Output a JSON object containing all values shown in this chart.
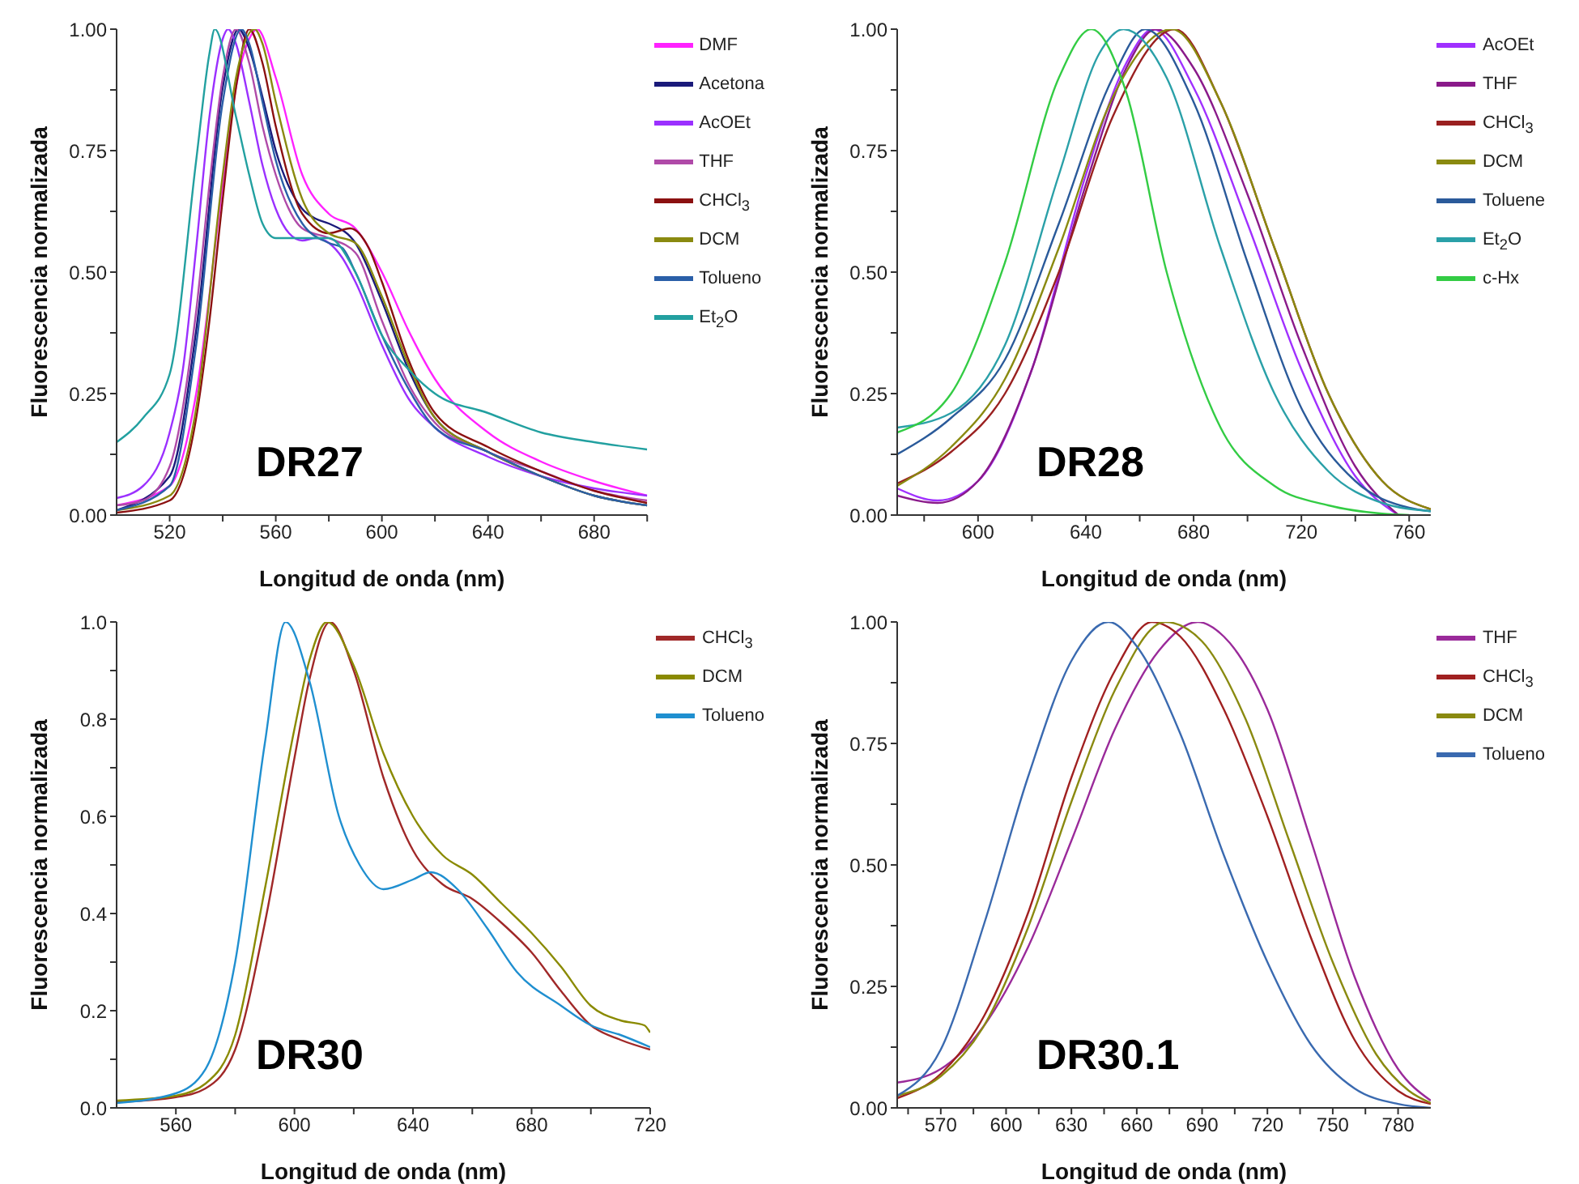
{
  "chart_data": [
    {
      "type": "line",
      "xlabel": "Longitud de onda (nm)",
      "ylabel": "Fluorescencia normalizada",
      "annotations": [
        "DR27"
      ],
      "legend": "top right",
      "xlim": [
        500,
        700
      ],
      "xticks": [
        520,
        560,
        600,
        640,
        680,
        {
          "value": 540,
          "label": null
        },
        {
          "value": 580,
          "label": null
        },
        {
          "value": 620,
          "label": null
        },
        {
          "value": 660,
          "label": null
        },
        {
          "value": 700,
          "label": null
        }
      ],
      "ylim": [
        0,
        1
      ],
      "yticks": [
        {
          "value": 0,
          "label": "0.00"
        },
        {
          "value": 0.25,
          "label": "0.25"
        },
        {
          "value": 0.5,
          "label": "0.50"
        },
        {
          "value": 0.75,
          "label": "0.75"
        },
        {
          "value": 1,
          "label": "1.00"
        },
        {
          "value": 0.125,
          "label": null
        },
        {
          "value": 0.375,
          "label": null
        },
        {
          "value": 0.625,
          "label": null
        },
        {
          "value": 0.875,
          "label": null
        }
      ],
      "series": [
        {
          "name": "DMF",
          "color": "#ff22ff",
          "x": [
            500,
            520,
            530,
            540,
            545,
            550,
            553,
            560,
            570,
            580,
            590,
            600,
            610,
            620,
            640,
            660,
            680,
            700
          ],
          "values": [
            0.02,
            0.06,
            0.25,
            0.68,
            0.88,
            0.98,
            1.0,
            0.9,
            0.7,
            0.62,
            0.59,
            0.5,
            0.38,
            0.28,
            0.17,
            0.11,
            0.07,
            0.04
          ]
        },
        {
          "name": "Acetona",
          "color": "#1a1a7a",
          "x": [
            500,
            520,
            530,
            540,
            546,
            550,
            555,
            560,
            570,
            575,
            580,
            590,
            600,
            610,
            620,
            640,
            660,
            680,
            700
          ],
          "values": [
            0.01,
            0.08,
            0.38,
            0.88,
            1.0,
            0.96,
            0.86,
            0.75,
            0.63,
            0.61,
            0.6,
            0.56,
            0.44,
            0.3,
            0.2,
            0.13,
            0.08,
            0.04,
            0.02
          ]
        },
        {
          "name": "AcOEt",
          "color": "#9b30ff",
          "x": [
            500,
            510,
            520,
            525,
            530,
            535,
            540,
            542,
            545,
            550,
            555,
            560,
            565,
            570,
            575,
            580,
            585,
            590,
            600,
            610,
            620,
            640,
            660,
            680,
            700
          ],
          "values": [
            0.035,
            0.06,
            0.17,
            0.3,
            0.55,
            0.82,
            0.98,
            1.0,
            0.97,
            0.85,
            0.72,
            0.63,
            0.58,
            0.565,
            0.57,
            0.56,
            0.53,
            0.48,
            0.35,
            0.24,
            0.18,
            0.12,
            0.08,
            0.055,
            0.04
          ]
        },
        {
          "name": "THF",
          "color": "#b04aa8",
          "x": [
            500,
            510,
            520,
            530,
            535,
            540,
            545,
            550,
            555,
            560,
            570,
            580,
            590,
            600,
            610,
            620,
            640,
            660,
            680,
            700
          ],
          "values": [
            0.02,
            0.03,
            0.1,
            0.42,
            0.68,
            0.9,
            1.0,
            0.93,
            0.8,
            0.7,
            0.59,
            0.57,
            0.54,
            0.4,
            0.27,
            0.19,
            0.13,
            0.09,
            0.05,
            0.03
          ]
        },
        {
          "name": "CHCl$_{3}$",
          "color": "#8b1010",
          "x": [
            500,
            520,
            530,
            535,
            540,
            545,
            550,
            555,
            560,
            570,
            580,
            588,
            595,
            600,
            610,
            620,
            640,
            660,
            680,
            700
          ],
          "values": [
            0.005,
            0.03,
            0.2,
            0.4,
            0.65,
            0.88,
            1.0,
            0.93,
            0.8,
            0.62,
            0.58,
            0.59,
            0.55,
            0.48,
            0.32,
            0.21,
            0.14,
            0.09,
            0.05,
            0.025
          ]
        },
        {
          "name": "DCM",
          "color": "#8a8a10",
          "x": [
            500,
            520,
            530,
            540,
            545,
            552,
            555,
            560,
            570,
            580,
            590,
            600,
            610,
            620,
            640,
            660,
            680,
            700
          ],
          "values": [
            0.01,
            0.04,
            0.22,
            0.7,
            0.9,
            1.0,
            0.97,
            0.85,
            0.65,
            0.58,
            0.56,
            0.45,
            0.31,
            0.2,
            0.13,
            0.08,
            0.04,
            0.02
          ]
        },
        {
          "name": "Tolueno",
          "color": "#2a5fa8",
          "x": [
            500,
            520,
            530,
            540,
            547,
            550,
            555,
            560,
            570,
            580,
            585,
            590,
            600,
            610,
            620,
            640,
            660,
            680,
            700
          ],
          "values": [
            0.01,
            0.06,
            0.35,
            0.85,
            1.0,
            0.97,
            0.85,
            0.73,
            0.6,
            0.56,
            0.55,
            0.5,
            0.37,
            0.26,
            0.18,
            0.13,
            0.08,
            0.04,
            0.02
          ]
        },
        {
          "name": "Et$_{2}$O",
          "color": "#22a0a0",
          "x": [
            500,
            510,
            520,
            530,
            535,
            537,
            545,
            550,
            555,
            560,
            570,
            580,
            590,
            600,
            610,
            620,
            640,
            660,
            680,
            700
          ],
          "values": [
            0.15,
            0.2,
            0.29,
            0.73,
            0.95,
            1.0,
            0.82,
            0.7,
            0.6,
            0.57,
            0.57,
            0.57,
            0.5,
            0.37,
            0.3,
            0.25,
            0.21,
            0.17,
            0.15,
            0.135
          ]
        }
      ]
    },
    {
      "type": "line",
      "xlabel": "Longitud de onda (nm)",
      "ylabel": "Fluorescencia normalizada",
      "annotations": [
        "DR28"
      ],
      "legend": "top right",
      "xlim": [
        570,
        768
      ],
      "xticks": [
        600,
        640,
        680,
        720,
        760,
        {
          "value": 580,
          "label": null
        },
        {
          "value": 620,
          "label": null
        },
        {
          "value": 660,
          "label": null
        },
        {
          "value": 700,
          "label": null
        },
        {
          "value": 740,
          "label": null
        }
      ],
      "ylim": [
        0,
        1
      ],
      "yticks": [
        {
          "value": 0,
          "label": "0.00"
        },
        {
          "value": 0.25,
          "label": "0.25"
        },
        {
          "value": 0.5,
          "label": "0.50"
        },
        {
          "value": 0.75,
          "label": "0.75"
        },
        {
          "value": 1,
          "label": "1.00"
        },
        {
          "value": 0.125,
          "label": null
        },
        {
          "value": 0.375,
          "label": null
        },
        {
          "value": 0.625,
          "label": null
        },
        {
          "value": 0.875,
          "label": null
        }
      ],
      "series": [
        {
          "name": "AcOEt",
          "color": "#a030ff",
          "x": [
            570,
            585,
            600,
            620,
            640,
            655,
            665,
            680,
            700,
            720,
            740,
            756
          ],
          "values": [
            0.055,
            0.03,
            0.07,
            0.3,
            0.7,
            0.93,
            1.0,
            0.88,
            0.6,
            0.3,
            0.08,
            0.0
          ]
        },
        {
          "name": "THF",
          "color": "#8a1a8a",
          "x": [
            570,
            585,
            600,
            620,
            640,
            655,
            666,
            680,
            700,
            720,
            740,
            756
          ],
          "values": [
            0.04,
            0.025,
            0.07,
            0.3,
            0.68,
            0.92,
            1.0,
            0.92,
            0.66,
            0.35,
            0.1,
            0.0
          ]
        },
        {
          "name": "CHCl$_{3}$",
          "color": "#9a2020",
          "x": [
            570,
            590,
            610,
            630,
            650,
            673,
            690,
            710,
            730,
            750,
            768
          ],
          "values": [
            0.065,
            0.13,
            0.25,
            0.5,
            0.82,
            1.0,
            0.85,
            0.55,
            0.25,
            0.07,
            0.012
          ]
        },
        {
          "name": "DCM",
          "color": "#8a8a10",
          "x": [
            570,
            590,
            610,
            630,
            650,
            672,
            690,
            710,
            730,
            750,
            768
          ],
          "values": [
            0.06,
            0.14,
            0.28,
            0.55,
            0.86,
            1.0,
            0.85,
            0.55,
            0.25,
            0.07,
            0.012
          ]
        },
        {
          "name": "Toluene",
          "color": "#2a5a9a",
          "x": [
            570,
            590,
            610,
            630,
            650,
            662,
            680,
            700,
            720,
            740,
            760,
            768
          ],
          "values": [
            0.125,
            0.2,
            0.32,
            0.6,
            0.9,
            1.0,
            0.85,
            0.52,
            0.22,
            0.07,
            0.015,
            0.008
          ]
        },
        {
          "name": "Et$_{2}$O",
          "color": "#2aa0a8",
          "x": [
            570,
            590,
            610,
            630,
            645,
            654,
            670,
            690,
            710,
            730,
            750,
            768
          ],
          "values": [
            0.18,
            0.21,
            0.35,
            0.7,
            0.95,
            1.0,
            0.9,
            0.55,
            0.25,
            0.09,
            0.025,
            0.008
          ]
        },
        {
          "name": "c-Hx",
          "color": "#33cc44",
          "x": [
            570,
            590,
            610,
            630,
            642,
            655,
            670,
            690,
            710,
            730,
            750,
            760
          ],
          "values": [
            0.17,
            0.25,
            0.52,
            0.9,
            1.0,
            0.87,
            0.5,
            0.18,
            0.06,
            0.02,
            0.003,
            0.0
          ]
        }
      ]
    },
    {
      "type": "line",
      "xlabel": "Longitud de onda (nm)",
      "ylabel": "Fluorescencia normalizada",
      "annotations": [
        "DR30"
      ],
      "legend": "top right",
      "xlim": [
        540,
        720
      ],
      "xticks": [
        560,
        600,
        640,
        680,
        720,
        {
          "value": 580,
          "label": null
        },
        {
          "value": 620,
          "label": null
        },
        {
          "value": 660,
          "label": null
        },
        {
          "value": 700,
          "label": null
        }
      ],
      "ylim": [
        0,
        1
      ],
      "yticks": [
        {
          "value": 0,
          "label": "0.0"
        },
        0.2,
        0.4,
        0.6,
        0.8,
        {
          "value": 1,
          "label": "1.0"
        },
        {
          "value": 0.1,
          "label": null
        },
        {
          "value": 0.3,
          "label": null
        },
        {
          "value": 0.5,
          "label": null
        },
        {
          "value": 0.7,
          "label": null
        },
        {
          "value": 0.9,
          "label": null
        }
      ],
      "series": [
        {
          "name": "CHCl$_{3}$",
          "color": "#a02828",
          "x": [
            540,
            560,
            570,
            580,
            590,
            600,
            605,
            612,
            620,
            630,
            640,
            650,
            660,
            670,
            680,
            690,
            700,
            710,
            720
          ],
          "values": [
            0.012,
            0.022,
            0.04,
            0.12,
            0.38,
            0.72,
            0.88,
            1.0,
            0.9,
            0.68,
            0.53,
            0.46,
            0.43,
            0.38,
            0.32,
            0.24,
            0.17,
            0.14,
            0.12
          ]
        },
        {
          "name": "DCM",
          "color": "#8a8a00",
          "x": [
            540,
            560,
            570,
            580,
            590,
            600,
            605,
            611,
            620,
            630,
            640,
            650,
            660,
            670,
            680,
            690,
            700,
            710,
            718,
            720
          ],
          "values": [
            0.015,
            0.025,
            0.05,
            0.15,
            0.45,
            0.78,
            0.92,
            1.0,
            0.91,
            0.73,
            0.6,
            0.52,
            0.48,
            0.42,
            0.36,
            0.29,
            0.21,
            0.18,
            0.17,
            0.155
          ]
        },
        {
          "name": "Tolueno",
          "color": "#1f8fd0",
          "x": [
            540,
            560,
            570,
            580,
            590,
            597,
            605,
            615,
            622,
            630,
            640,
            646,
            655,
            665,
            675,
            690,
            700,
            710,
            720
          ],
          "values": [
            0.01,
            0.03,
            0.08,
            0.3,
            0.75,
            1.0,
            0.88,
            0.6,
            0.5,
            0.45,
            0.47,
            0.485,
            0.45,
            0.37,
            0.28,
            0.21,
            0.17,
            0.15,
            0.125
          ]
        }
      ]
    },
    {
      "type": "line",
      "xlabel": "Longitud de onda (nm)",
      "ylabel": "Fluorescencia normalizada",
      "annotations": [
        "DR30.1"
      ],
      "legend": "top right",
      "xlim": [
        550,
        795
      ],
      "xticks": [
        570,
        600,
        630,
        660,
        690,
        720,
        750,
        780,
        {
          "value": 555,
          "label": null
        },
        {
          "value": 585,
          "label": null
        },
        {
          "value": 615,
          "label": null
        },
        {
          "value": 645,
          "label": null
        },
        {
          "value": 675,
          "label": null
        },
        {
          "value": 705,
          "label": null
        },
        {
          "value": 735,
          "label": null
        },
        {
          "value": 765,
          "label": null
        }
      ],
      "ylim": [
        0,
        1
      ],
      "yticks": [
        {
          "value": 0,
          "label": "0.00"
        },
        {
          "value": 0.25,
          "label": "0.25"
        },
        {
          "value": 0.5,
          "label": "0.50"
        },
        {
          "value": 0.75,
          "label": "0.75"
        },
        {
          "value": 1,
          "label": "1.00"
        },
        {
          "value": 0.125,
          "label": null
        },
        {
          "value": 0.375,
          "label": null
        },
        {
          "value": 0.625,
          "label": null
        },
        {
          "value": 0.875,
          "label": null
        }
      ],
      "series": [
        {
          "name": "THF",
          "color": "#9a2a9a",
          "x": [
            550,
            570,
            590,
            610,
            630,
            650,
            670,
            688,
            700,
            720,
            740,
            760,
            780,
            795
          ],
          "values": [
            0.052,
            0.08,
            0.17,
            0.33,
            0.55,
            0.78,
            0.94,
            1.0,
            0.97,
            0.82,
            0.55,
            0.27,
            0.08,
            0.015
          ]
        },
        {
          "name": "CHCl$_{3}$",
          "color": "#a02020",
          "x": [
            550,
            570,
            590,
            610,
            630,
            650,
            667,
            680,
            700,
            720,
            740,
            760,
            780,
            795
          ],
          "values": [
            0.02,
            0.07,
            0.19,
            0.4,
            0.68,
            0.9,
            1.0,
            0.97,
            0.82,
            0.6,
            0.35,
            0.14,
            0.035,
            0.008
          ]
        },
        {
          "name": "DCM",
          "color": "#8a8a10",
          "x": [
            550,
            570,
            590,
            610,
            630,
            650,
            673,
            690,
            710,
            730,
            750,
            770,
            785,
            795
          ],
          "values": [
            0.025,
            0.065,
            0.17,
            0.37,
            0.63,
            0.86,
            1.0,
            0.96,
            0.8,
            0.55,
            0.3,
            0.11,
            0.035,
            0.01
          ]
        },
        {
          "name": "Tolueno",
          "color": "#3a6ab0",
          "x": [
            550,
            570,
            590,
            610,
            630,
            647,
            660,
            680,
            700,
            720,
            740,
            760,
            780,
            795
          ],
          "values": [
            0.025,
            0.12,
            0.38,
            0.68,
            0.92,
            1.0,
            0.95,
            0.77,
            0.52,
            0.3,
            0.13,
            0.04,
            0.008,
            0.0
          ]
        }
      ]
    }
  ]
}
